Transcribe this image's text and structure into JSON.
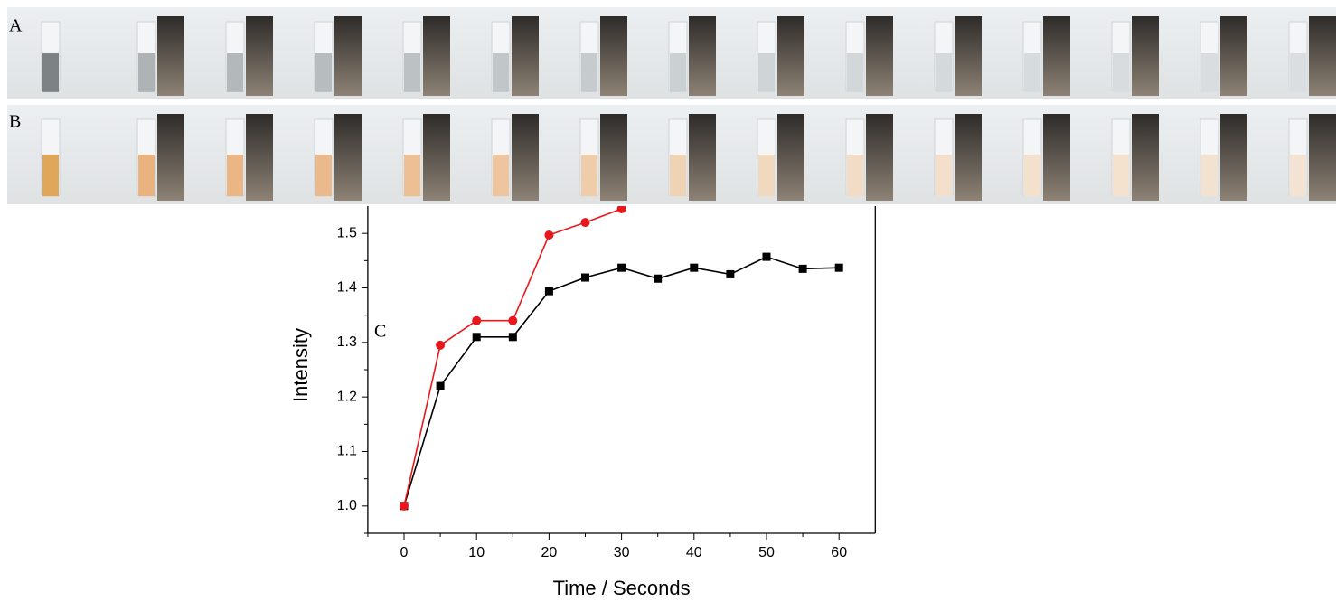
{
  "panels": [
    "A",
    "B",
    "C"
  ],
  "chart_data": {
    "type": "line",
    "x_label": "Time / Seconds",
    "y_label": "Intensity",
    "x": [
      0,
      5,
      10,
      15,
      20,
      25,
      30,
      35,
      40,
      45,
      50,
      55,
      60
    ],
    "series": [
      {
        "color": "#000000",
        "marker": "square",
        "values": [
          1.0,
          1.22,
          1.31,
          1.31,
          1.394,
          1.419,
          1.437,
          1.417,
          1.437,
          1.425,
          1.457,
          1.435,
          1.437
        ]
      },
      {
        "color": "#e8171b",
        "marker": "circle",
        "values": [
          1.0,
          1.295,
          1.34,
          1.34,
          1.497,
          1.52,
          1.545,
          null,
          null,
          null,
          null,
          null,
          null
        ]
      }
    ],
    "xlim": [
      -5,
      65
    ],
    "ylim": [
      0.95,
      1.55
    ],
    "xticks": [
      0,
      10,
      20,
      30,
      40,
      50,
      60
    ],
    "yticks": [
      {
        "value": 1.0,
        "label": "1.0"
      },
      1.1,
      1.2,
      1.3,
      1.4,
      1.5
    ]
  }
}
